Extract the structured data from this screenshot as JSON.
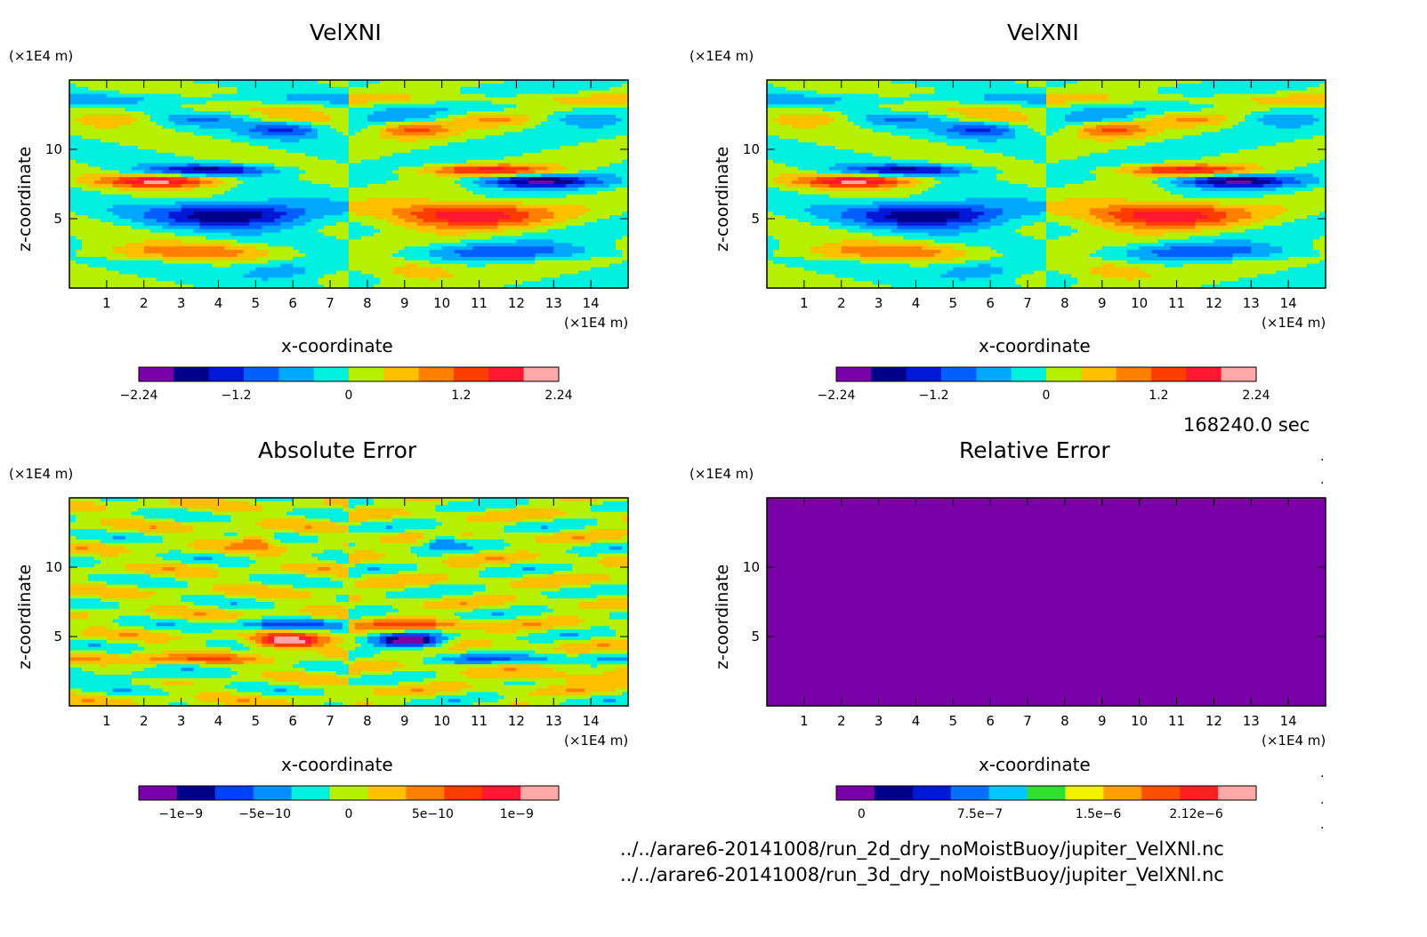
{
  "chart_data": [
    {
      "type": "heatmap",
      "title": "VelXNI",
      "xlabel": "x-coordinate",
      "ylabel": "z-coordinate",
      "x_unit": "(×1E4 m)",
      "y_unit": "(×1E4 m)",
      "xlim": [
        0,
        15
      ],
      "ylim": [
        0,
        15
      ],
      "x_ticks": [
        1,
        2,
        3,
        4,
        5,
        6,
        7,
        8,
        9,
        10,
        11,
        12,
        13,
        14
      ],
      "y_ticks": [
        5,
        10
      ],
      "colorbar_ticks": [
        "−2.24",
        "−1.2",
        "0",
        "1.2",
        "2.24"
      ],
      "colorbar_range": [
        -2.24,
        2.24
      ],
      "colorbar_colors": [
        "#7a00a8",
        "#00008c",
        "#0018d8",
        "#0060ff",
        "#00a8ff",
        "#00f0e0",
        "#b4f000",
        "#ffc000",
        "#ff8000",
        "#ff3c00",
        "#ff1830",
        "#ffa8a8"
      ],
      "grid": false,
      "legend": "colorbar-bottom"
    },
    {
      "type": "heatmap",
      "title": "VelXNI",
      "xlabel": "x-coordinate",
      "ylabel": "z-coordinate",
      "x_unit": "(×1E4 m)",
      "y_unit": "(×1E4 m)",
      "xlim": [
        0,
        15
      ],
      "ylim": [
        0,
        15
      ],
      "x_ticks": [
        1,
        2,
        3,
        4,
        5,
        6,
        7,
        8,
        9,
        10,
        11,
        12,
        13,
        14
      ],
      "y_ticks": [
        5,
        10
      ],
      "colorbar_ticks": [
        "−2.24",
        "−1.2",
        "0",
        "1.2",
        "2.24"
      ],
      "colorbar_range": [
        -2.24,
        2.24
      ],
      "colorbar_colors": [
        "#7a00a8",
        "#00008c",
        "#0018d8",
        "#0060ff",
        "#00a8ff",
        "#00f0e0",
        "#b4f000",
        "#ffc000",
        "#ff8000",
        "#ff3c00",
        "#ff1830",
        "#ffa8a8"
      ],
      "grid": false,
      "legend": "colorbar-bottom"
    },
    {
      "type": "heatmap",
      "title": "Absolute Error",
      "xlabel": "x-coordinate",
      "ylabel": "z-coordinate",
      "x_unit": "(×1E4 m)",
      "y_unit": "(×1E4 m)",
      "xlim": [
        0,
        15
      ],
      "ylim": [
        0,
        15
      ],
      "x_ticks": [
        1,
        2,
        3,
        4,
        5,
        6,
        7,
        8,
        9,
        10,
        11,
        12,
        13,
        14
      ],
      "y_ticks": [
        5,
        10
      ],
      "colorbar_ticks": [
        "−1e−9",
        "−5e−10",
        "0",
        "5e−10",
        "1e−9"
      ],
      "colorbar_range": [
        -1.25e-09,
        1.25e-09
      ],
      "colorbar_colors": [
        "#7a00a8",
        "#00008c",
        "#0040ff",
        "#0090ff",
        "#00f0e0",
        "#b4f000",
        "#ffc000",
        "#ff8000",
        "#ff3c00",
        "#ff1830",
        "#ffa8a8"
      ],
      "grid": false,
      "legend": "colorbar-bottom"
    },
    {
      "type": "heatmap",
      "title": "Relative Error",
      "xlabel": "x-coordinate",
      "ylabel": "z-coordinate",
      "x_unit": "(×1E4 m)",
      "y_unit": "(×1E4 m)",
      "xlim": [
        0,
        15
      ],
      "ylim": [
        0,
        15
      ],
      "x_ticks": [
        1,
        2,
        3,
        4,
        5,
        6,
        7,
        8,
        9,
        10,
        11,
        12,
        13,
        14
      ],
      "y_ticks": [
        5,
        10
      ],
      "colorbar_ticks": [
        "0",
        "7.5e−7",
        "1.5e−6",
        "2.12e−6"
      ],
      "colorbar_range": [
        -1.6e-07,
        2.5e-06
      ],
      "colorbar_colors": [
        "#7a00a8",
        "#00008c",
        "#0018d8",
        "#0070ff",
        "#00c8ff",
        "#30e030",
        "#f0f000",
        "#ffa000",
        "#ff5000",
        "#ff2020",
        "#ffa8a8"
      ],
      "grid": false,
      "legend": "colorbar-bottom"
    }
  ],
  "time_label": "168240.0 sec",
  "files": [
    "../../arare6-20141008/run_2d_dry_noMoistBuoy/jupiter_VelXNl.nc",
    "../../arare6-20141008/run_3d_dry_noMoistBuoy/jupiter_VelXNl.nc"
  ]
}
